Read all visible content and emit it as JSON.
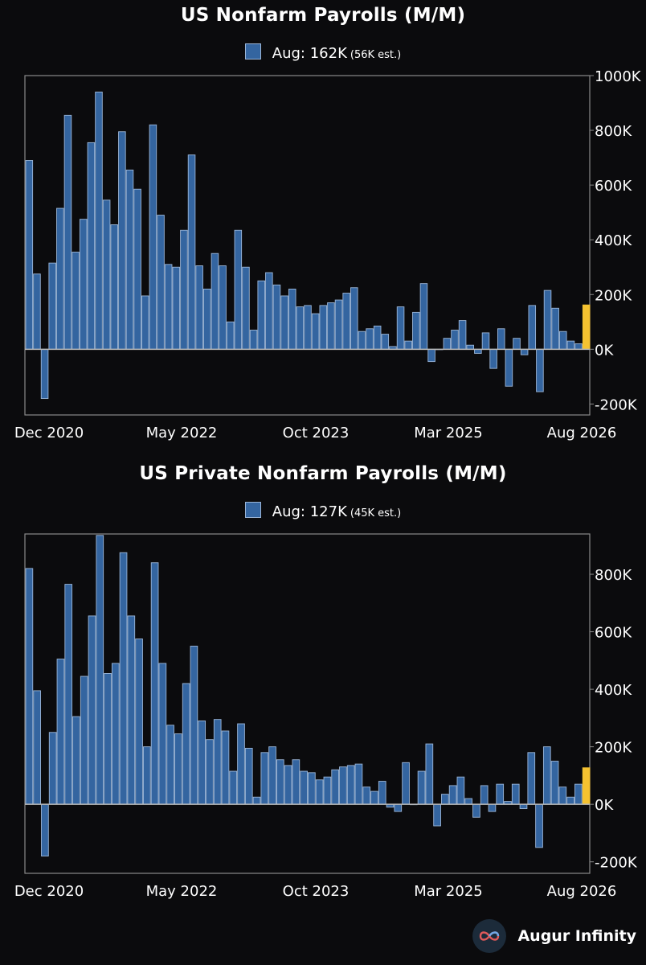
{
  "chart_data": [
    {
      "type": "bar",
      "title": "US Nonfarm Payrolls (M/M)",
      "legend": {
        "label": "Aug: 162K",
        "est": "(56K est.)"
      },
      "x_tick_labels": [
        "Dec 2020",
        "May 2022",
        "Oct 2023",
        "Mar 2025",
        "Aug 2026"
      ],
      "y_ticks": [
        -200,
        0,
        200,
        400,
        600,
        800,
        1000
      ],
      "y_tick_labels": [
        "-200K",
        "0K",
        "200K",
        "400K",
        "600K",
        "800K",
        "1000K"
      ],
      "ylim": [
        -240,
        1000
      ],
      "values": [
        690,
        275,
        -180,
        315,
        515,
        855,
        355,
        475,
        755,
        940,
        545,
        455,
        795,
        655,
        585,
        195,
        820,
        490,
        310,
        300,
        435,
        710,
        305,
        220,
        350,
        305,
        100,
        435,
        300,
        70,
        250,
        280,
        235,
        195,
        220,
        155,
        160,
        130,
        160,
        170,
        180,
        205,
        225,
        65,
        75,
        85,
        55,
        10,
        155,
        30,
        135,
        240,
        -45,
        0,
        40,
        70,
        105,
        15,
        -15,
        60,
        -70,
        75,
        -135,
        40,
        -20,
        160,
        -155,
        215,
        150,
        65,
        30,
        20,
        162
      ],
      "highlight_last": true,
      "colors": {
        "bar": "#3465a0",
        "bar_edge": "#9bb6d8",
        "highlight": "#f5c230",
        "axis": "#8a8a8a"
      }
    },
    {
      "type": "bar",
      "title": "US Private Nonfarm Payrolls (M/M)",
      "legend": {
        "label": "Aug: 127K",
        "est": "(45K est.)"
      },
      "x_tick_labels": [
        "Dec 2020",
        "May 2022",
        "Oct 2023",
        "Mar 2025",
        "Aug 2026"
      ],
      "y_ticks": [
        -200,
        0,
        200,
        400,
        600,
        800
      ],
      "y_tick_labels": [
        "-200K",
        "0K",
        "200K",
        "400K",
        "600K",
        "800K"
      ],
      "ylim": [
        -240,
        940
      ],
      "values": [
        820,
        395,
        -180,
        250,
        505,
        765,
        305,
        445,
        655,
        935,
        455,
        490,
        875,
        655,
        575,
        200,
        840,
        490,
        275,
        245,
        420,
        550,
        290,
        225,
        295,
        255,
        115,
        280,
        195,
        25,
        180,
        200,
        155,
        135,
        155,
        115,
        110,
        85,
        95,
        120,
        130,
        135,
        140,
        60,
        45,
        80,
        -10,
        -25,
        145,
        0,
        115,
        210,
        -75,
        35,
        65,
        95,
        20,
        -45,
        65,
        -25,
        70,
        10,
        70,
        -15,
        180,
        -150,
        200,
        150,
        60,
        25,
        70,
        127
      ],
      "highlight_last": true,
      "colors": {
        "bar": "#3465a0",
        "bar_edge": "#9bb6d8",
        "highlight": "#f5c230",
        "axis": "#8a8a8a"
      }
    }
  ],
  "footer": {
    "brand": "Augur Infinity",
    "logo_icon": "infinity-logo-icon"
  }
}
